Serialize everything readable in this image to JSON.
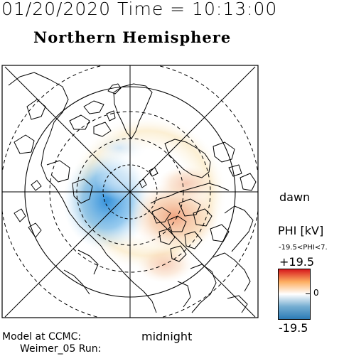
{
  "header": {
    "timestamp": "01/20/2020 Time = 10:13:00",
    "hemisphere": "Northern Hemisphere"
  },
  "labels": {
    "dawn": "dawn",
    "midnight": "midnight",
    "model_line1": "Model at CCMC:",
    "model_line2": "Weimer_05 Run:"
  },
  "colorbar": {
    "title": "PHI [kV]",
    "range_text": "-19.5<PHI<7.",
    "max_label": "+19.5",
    "zero_label": "0",
    "min_label": "-19.5",
    "colors": {
      "max": "#d7191c",
      "upper": "#fdae61",
      "mid": "#ffffff",
      "lower": "#74add1",
      "min": "#2c7bb6"
    }
  },
  "map": {
    "projection": "polar-north",
    "latitude_circles": "dashed",
    "meridians": 8,
    "colors": {
      "positive": "#f4a582",
      "negative": "#4393c3",
      "coast": "#000000"
    }
  }
}
